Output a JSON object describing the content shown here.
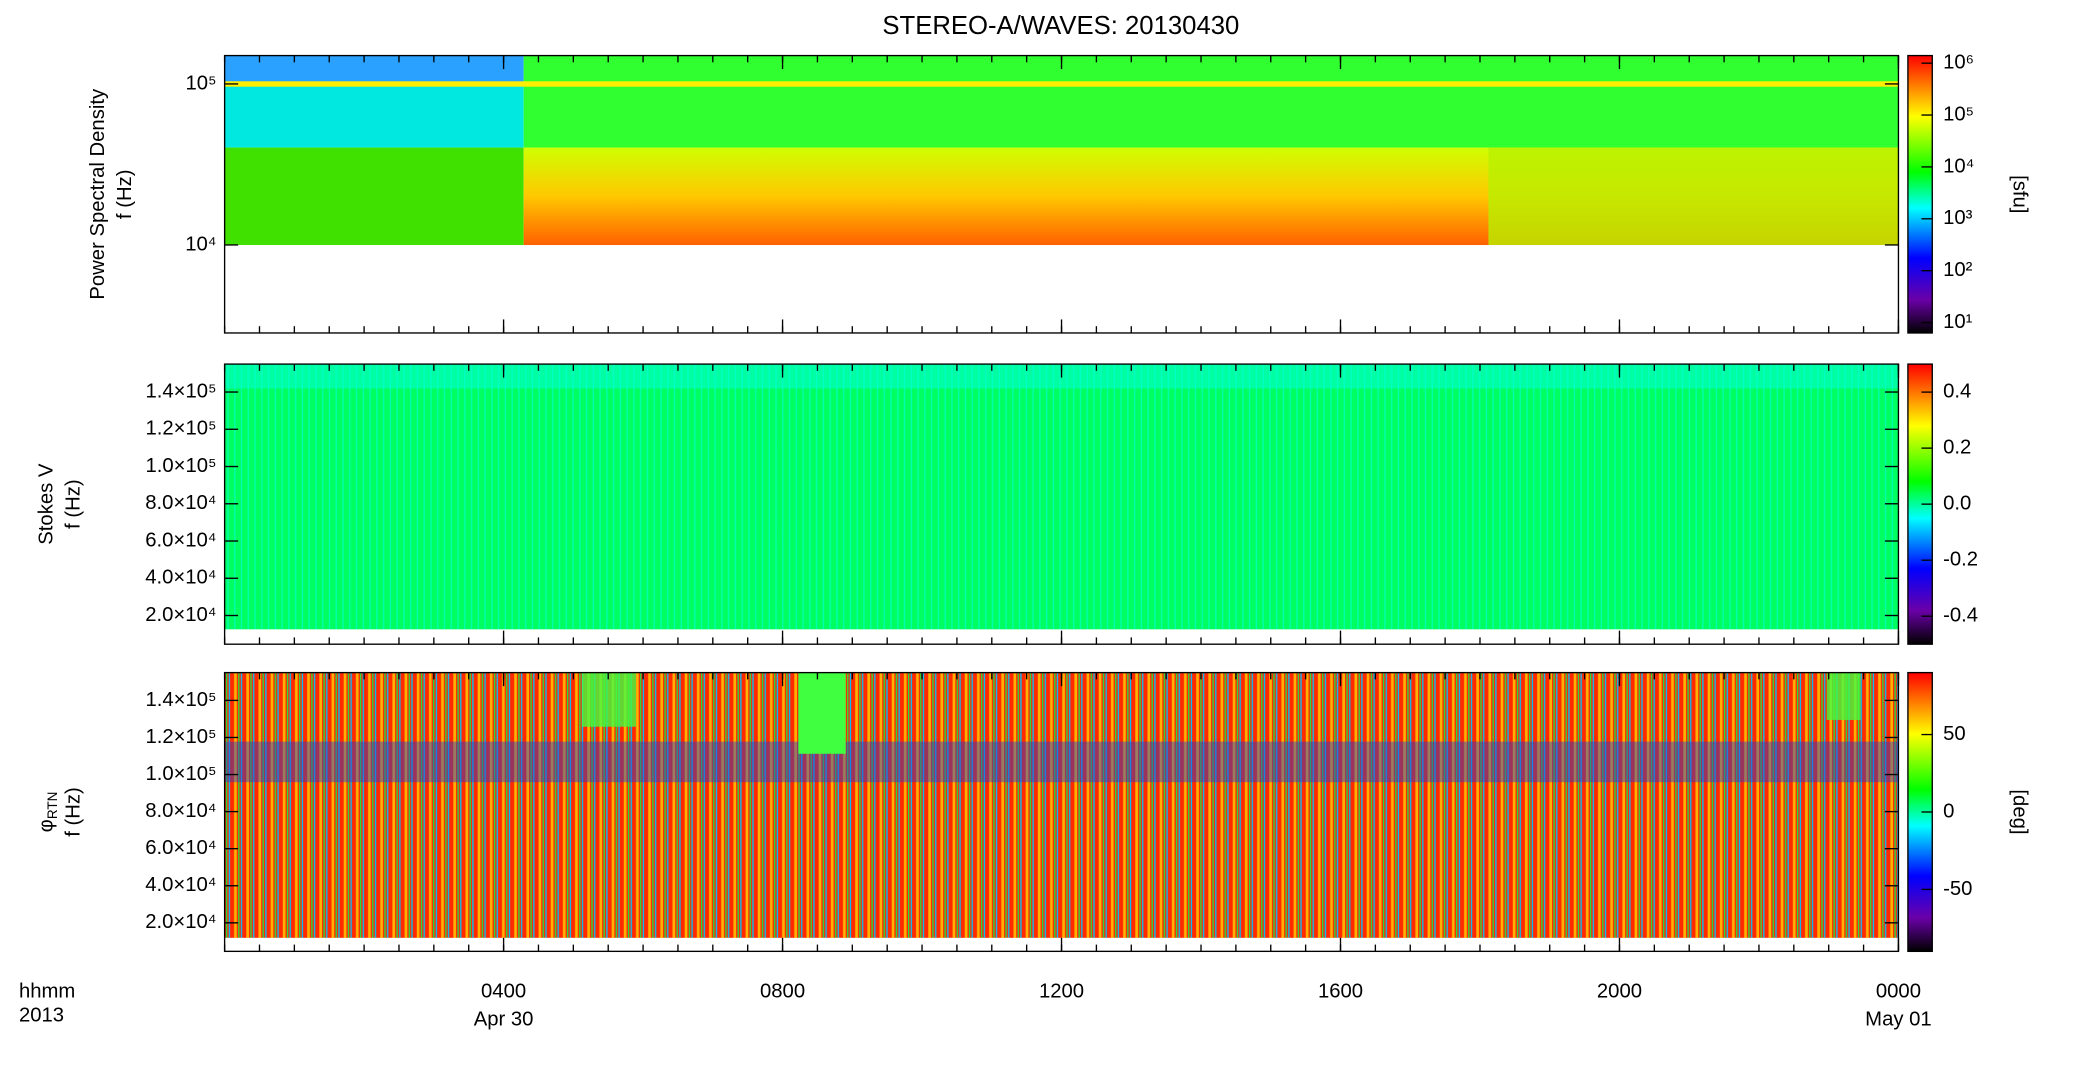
{
  "title": "STEREO-A/WAVES: 20130430",
  "chart_data": [
    {
      "type": "heatmap",
      "ylabel": [
        "Power Spectral Density",
        "f (Hz)"
      ],
      "yscale": "log",
      "ylim": [
        2840,
        150000
      ],
      "yticks": [
        {
          "value": 10000,
          "label": "10⁴"
        },
        {
          "value": 100000,
          "label": "10⁵"
        }
      ],
      "cscale": "log",
      "clim": [
        6.3,
        1400000
      ],
      "clabel": "[sfu]",
      "cticks": [
        {
          "value": 10,
          "label": "10¹"
        },
        {
          "value": 100,
          "label": "10²"
        },
        {
          "value": 1000,
          "label": "10³"
        },
        {
          "value": 10000,
          "label": "10⁴"
        },
        {
          "value": 100000,
          "label": "10⁵"
        },
        {
          "value": 1000000,
          "label": "10⁶"
        }
      ]
    },
    {
      "type": "heatmap",
      "ylabel": [
        "Stokes V",
        "f (Hz)"
      ],
      "ylim": [
        4600,
        155000
      ],
      "yticks": [
        {
          "value": 20000,
          "label": "2.0×10⁴"
        },
        {
          "value": 40000,
          "label": "4.0×10⁴"
        },
        {
          "value": 60000,
          "label": "6.0×10⁴"
        },
        {
          "value": 80000,
          "label": "8.0×10⁴"
        },
        {
          "value": 100000,
          "label": "1.0×10⁵"
        },
        {
          "value": 120000,
          "label": "1.2×10⁵"
        },
        {
          "value": 140000,
          "label": "1.4×10⁵"
        }
      ],
      "clim": [
        -0.5,
        0.5
      ],
      "cticks": [
        -0.4,
        -0.2,
        {
          "value": 0,
          "label": "0.0"
        },
        0.2,
        0.4
      ]
    },
    {
      "type": "heatmap",
      "ylabel": [
        "φ",
        "f (Hz)"
      ],
      "ylabel_sub": "RTN",
      "ylim": [
        4600,
        155000
      ],
      "yticks": [
        {
          "value": 20000,
          "label": "2.0×10⁴"
        },
        {
          "value": 40000,
          "label": "4.0×10⁴"
        },
        {
          "value": 60000,
          "label": "6.0×10⁴"
        },
        {
          "value": 80000,
          "label": "8.0×10⁴"
        },
        {
          "value": 100000,
          "label": "1.0×10⁵"
        },
        {
          "value": 120000,
          "label": "1.2×10⁵"
        },
        {
          "value": 140000,
          "label": "1.4×10⁵"
        }
      ],
      "clim": [
        -90,
        90
      ],
      "cticks": [
        -50,
        0,
        50
      ],
      "clabel": "[deg]",
      "x_label": "hhmm",
      "x_sublabel": "2013",
      "xlim": [
        0,
        24
      ],
      "xticks": [
        {
          "value": 4,
          "label": "0400"
        },
        {
          "value": 8,
          "label": "0800"
        },
        {
          "value": 12,
          "label": "1200"
        },
        {
          "value": 16,
          "label": "1600"
        },
        {
          "value": 20,
          "label": "2000"
        },
        {
          "value": 24,
          "label": "0000"
        }
      ],
      "x_date_labels": [
        {
          "value": 4,
          "label": "Apr 30"
        },
        {
          "value": 24,
          "label": "May 01"
        }
      ]
    }
  ]
}
